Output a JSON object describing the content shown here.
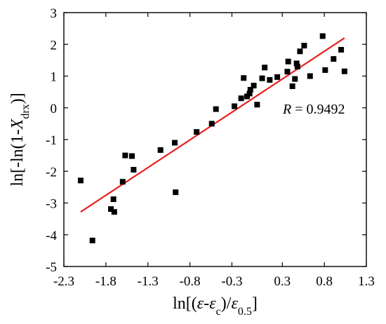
{
  "chart_data": {
    "type": "scatter",
    "xlim": [
      -2.3,
      1.3
    ],
    "ylim": [
      -5,
      3
    ],
    "xticks": [
      -2.3,
      -1.8,
      -1.3,
      -0.8,
      -0.3,
      0.3,
      0.8,
      1.3
    ],
    "xtick_labels": [
      "-2.3",
      "-1.8",
      "-1.3",
      "-0.8",
      "-0.3",
      "0.3",
      "0.8",
      "1.3"
    ],
    "yticks": [
      -5,
      -4,
      -3,
      -2,
      -1,
      0,
      1,
      2,
      3
    ],
    "ytick_labels": [
      "-5",
      "-4",
      "-3",
      "-2",
      "-1",
      "0",
      "1",
      "2",
      "3"
    ],
    "xlabel": {
      "pre": "ln[(",
      "a": "ε",
      "mid": "-",
      "b": "ε",
      "b_sub": "c",
      "close": ")/",
      "c": "ε",
      "c_sub": "0.5",
      "post": "]"
    },
    "ylabel": {
      "pre": "ln[-ln(1-",
      "var": "X",
      "sub": "drx",
      "post": ")]"
    },
    "grid": false,
    "marker_color": "#000000",
    "fit_color": "#e8201e",
    "annotation": {
      "var": "R",
      "text": " = 0.9492"
    },
    "fit": {
      "x": [
        -2.1,
        1.04
      ],
      "y": [
        -3.28,
        2.2
      ]
    },
    "points": [
      {
        "x": -2.1,
        "y": -2.29
      },
      {
        "x": -1.96,
        "y": -4.18
      },
      {
        "x": -1.74,
        "y": -3.19
      },
      {
        "x": -1.71,
        "y": -2.88
      },
      {
        "x": -1.7,
        "y": -3.28
      },
      {
        "x": -1.6,
        "y": -2.33
      },
      {
        "x": -1.57,
        "y": -1.5
      },
      {
        "x": -1.49,
        "y": -1.52
      },
      {
        "x": -1.47,
        "y": -1.95
      },
      {
        "x": -1.15,
        "y": -1.33
      },
      {
        "x": -0.98,
        "y": -1.1
      },
      {
        "x": -0.97,
        "y": -2.66
      },
      {
        "x": -0.72,
        "y": -0.76
      },
      {
        "x": -0.54,
        "y": -0.5
      },
      {
        "x": -0.49,
        "y": -0.04
      },
      {
        "x": -0.27,
        "y": 0.05
      },
      {
        "x": -0.19,
        "y": 0.3
      },
      {
        "x": -0.16,
        "y": 0.94
      },
      {
        "x": -0.12,
        "y": 0.36
      },
      {
        "x": -0.09,
        "y": 0.45
      },
      {
        "x": -0.08,
        "y": 0.57
      },
      {
        "x": -0.04,
        "y": 0.7
      },
      {
        "x": 0.0,
        "y": 0.1
      },
      {
        "x": 0.06,
        "y": 0.93
      },
      {
        "x": 0.09,
        "y": 1.27
      },
      {
        "x": 0.15,
        "y": 0.88
      },
      {
        "x": 0.24,
        "y": 0.97
      },
      {
        "x": 0.36,
        "y": 1.14
      },
      {
        "x": 0.37,
        "y": 1.46
      },
      {
        "x": 0.42,
        "y": 0.68
      },
      {
        "x": 0.45,
        "y": 0.91
      },
      {
        "x": 0.47,
        "y": 1.4
      },
      {
        "x": 0.48,
        "y": 1.3
      },
      {
        "x": 0.51,
        "y": 1.78
      },
      {
        "x": 0.56,
        "y": 1.96
      },
      {
        "x": 0.63,
        "y": 1.0
      },
      {
        "x": 0.78,
        "y": 2.26
      },
      {
        "x": 0.81,
        "y": 1.19
      },
      {
        "x": 0.91,
        "y": 1.54
      },
      {
        "x": 1.0,
        "y": 1.83
      },
      {
        "x": 1.04,
        "y": 1.15
      }
    ]
  }
}
